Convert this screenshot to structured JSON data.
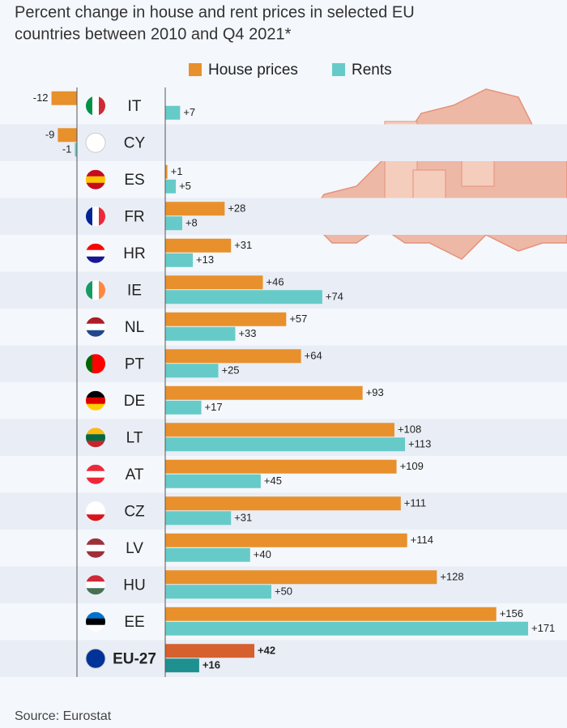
{
  "chart_data": {
    "type": "bar",
    "orientation": "horizontal",
    "title": "Percent change in house and rent prices in selected EU countries between 2010 and Q4 2021*",
    "source": "Source: Eurostat",
    "categories": [
      "IT",
      "CY",
      "ES",
      "FR",
      "HR",
      "IE",
      "NL",
      "PT",
      "DE",
      "LT",
      "AT",
      "CZ",
      "LV",
      "HU",
      "EE",
      "EU-27"
    ],
    "series": [
      {
        "name": "House prices",
        "color": "#e8902c",
        "colors": [
          "#e8902c",
          "#e8902c",
          "#e8902c",
          "#e8902c",
          "#e8902c",
          "#e8902c",
          "#e8902c",
          "#e8902c",
          "#e8902c",
          "#e8902c",
          "#e8902c",
          "#e8902c",
          "#e8902c",
          "#e8902c",
          "#e8902c",
          "#d6602e"
        ],
        "values": [
          -12,
          -9,
          1,
          28,
          31,
          46,
          57,
          64,
          93,
          108,
          109,
          111,
          114,
          128,
          156,
          42
        ],
        "value_labels": [
          "-12",
          "-9",
          "+1",
          "+28",
          "+31",
          "+46",
          "+57",
          "+64",
          "+93",
          "+108",
          "+109",
          "+111",
          "+114",
          "+128",
          "+156",
          "+42"
        ]
      },
      {
        "name": "Rents",
        "color": "#66cbc8",
        "colors": [
          "#66cbc8",
          "#66cbc8",
          "#66cbc8",
          "#66cbc8",
          "#66cbc8",
          "#66cbc8",
          "#66cbc8",
          "#66cbc8",
          "#66cbc8",
          "#66cbc8",
          "#66cbc8",
          "#66cbc8",
          "#66cbc8",
          "#66cbc8",
          "#66cbc8",
          "#1f9090"
        ],
        "values": [
          7,
          -1,
          5,
          8,
          13,
          74,
          33,
          25,
          17,
          113,
          45,
          31,
          40,
          50,
          171,
          16
        ],
        "value_labels": [
          "+7",
          "-1",
          "+5",
          "+8",
          "+13",
          "+74",
          "+33",
          "+25",
          "+17",
          "+113",
          "+45",
          "+31",
          "+40",
          "+50",
          "+171",
          "+16"
        ]
      }
    ]
  }
}
